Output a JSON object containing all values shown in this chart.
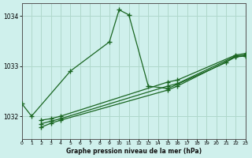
{
  "title": "Graphe pression niveau de la mer (hPa)",
  "bg_color": "#cff0ec",
  "grid_color": "#b0d8cc",
  "line_color": "#1a6622",
  "xlim": [
    0,
    23
  ],
  "ylim": [
    1031.55,
    1034.25
  ],
  "yticks": [
    1032,
    1033,
    1034
  ],
  "xticks": [
    0,
    1,
    2,
    3,
    4,
    5,
    6,
    7,
    8,
    9,
    10,
    11,
    12,
    13,
    14,
    15,
    16,
    17,
    18,
    19,
    20,
    21,
    22,
    23
  ],
  "series": [
    {
      "x": [
        0,
        1,
        2,
        3,
        4,
        5,
        6,
        7,
        8,
        9,
        10,
        11,
        12,
        13,
        14,
        15,
        16,
        17,
        18,
        19,
        20,
        21,
        22,
        23
      ],
      "y": [
        1032.25,
        1032.0,
        null,
        null,
        null,
        1032.9,
        null,
        null,
        null,
        1033.48,
        1034.12,
        1034.02,
        null,
        1032.6,
        null,
        1032.55,
        null,
        null,
        null,
        null,
        null,
        1033.07,
        1033.2,
        1033.2
      ]
    },
    {
      "x": [
        0,
        1,
        2,
        3,
        4,
        5,
        6,
        7,
        8,
        9,
        10,
        11,
        12,
        13,
        14,
        15,
        16,
        17,
        18,
        19,
        20,
        21,
        22,
        23
      ],
      "y": [
        null,
        null,
        1031.78,
        1031.86,
        1031.92,
        null,
        null,
        null,
        null,
        null,
        null,
        null,
        null,
        null,
        null,
        1032.52,
        1032.6,
        null,
        null,
        null,
        null,
        null,
        1033.18,
        1033.2
      ]
    },
    {
      "x": [
        0,
        1,
        2,
        3,
        4,
        5,
        6,
        7,
        8,
        9,
        10,
        11,
        12,
        13,
        14,
        15,
        16,
        17,
        18,
        19,
        20,
        21,
        22,
        23
      ],
      "y": [
        null,
        null,
        1031.85,
        1031.9,
        1031.95,
        null,
        null,
        null,
        null,
        null,
        null,
        null,
        null,
        null,
        null,
        1032.6,
        1032.65,
        null,
        null,
        null,
        null,
        null,
        1033.2,
        1033.22
      ]
    },
    {
      "x": [
        0,
        1,
        2,
        3,
        4,
        5,
        6,
        7,
        8,
        9,
        10,
        11,
        12,
        13,
        14,
        15,
        16,
        17,
        18,
        19,
        20,
        21,
        22,
        23
      ],
      "y": [
        null,
        null,
        1031.92,
        1031.95,
        1032.0,
        null,
        null,
        null,
        null,
        null,
        null,
        null,
        null,
        null,
        null,
        1032.68,
        1032.72,
        null,
        null,
        null,
        null,
        null,
        1033.22,
        1033.25
      ]
    }
  ]
}
